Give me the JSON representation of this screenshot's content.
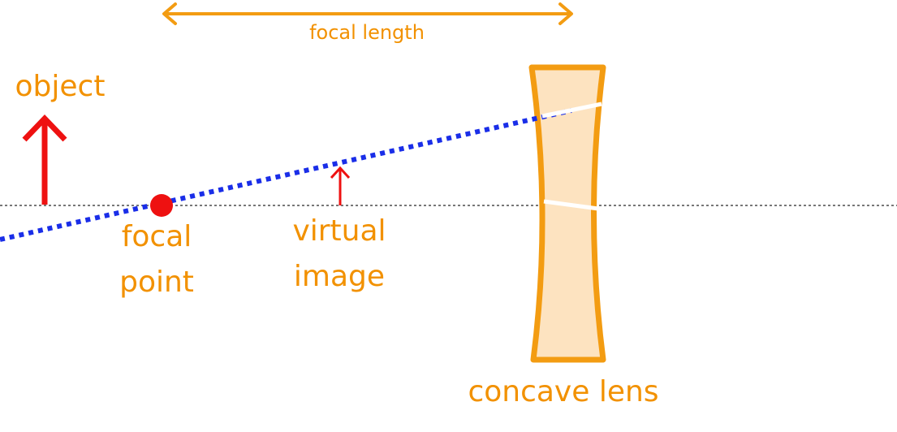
{
  "labels": {
    "focal_length": "focal length",
    "object": "object",
    "focal_point_line1": "focal",
    "focal_point_line2": "point",
    "virtual_image_line1": "virtual",
    "virtual_image_line2": "image",
    "concave_lens": "concave lens"
  },
  "colors": {
    "label": "#f29100",
    "lens_stroke": "#f39c12",
    "lens_fill": "#fde3c0",
    "object_arrow": "#ee1111",
    "focal_point": "#ee1111",
    "ray": "#1a2ee8",
    "axis": "#777777",
    "focal_length_arrow": "#f39c12"
  }
}
